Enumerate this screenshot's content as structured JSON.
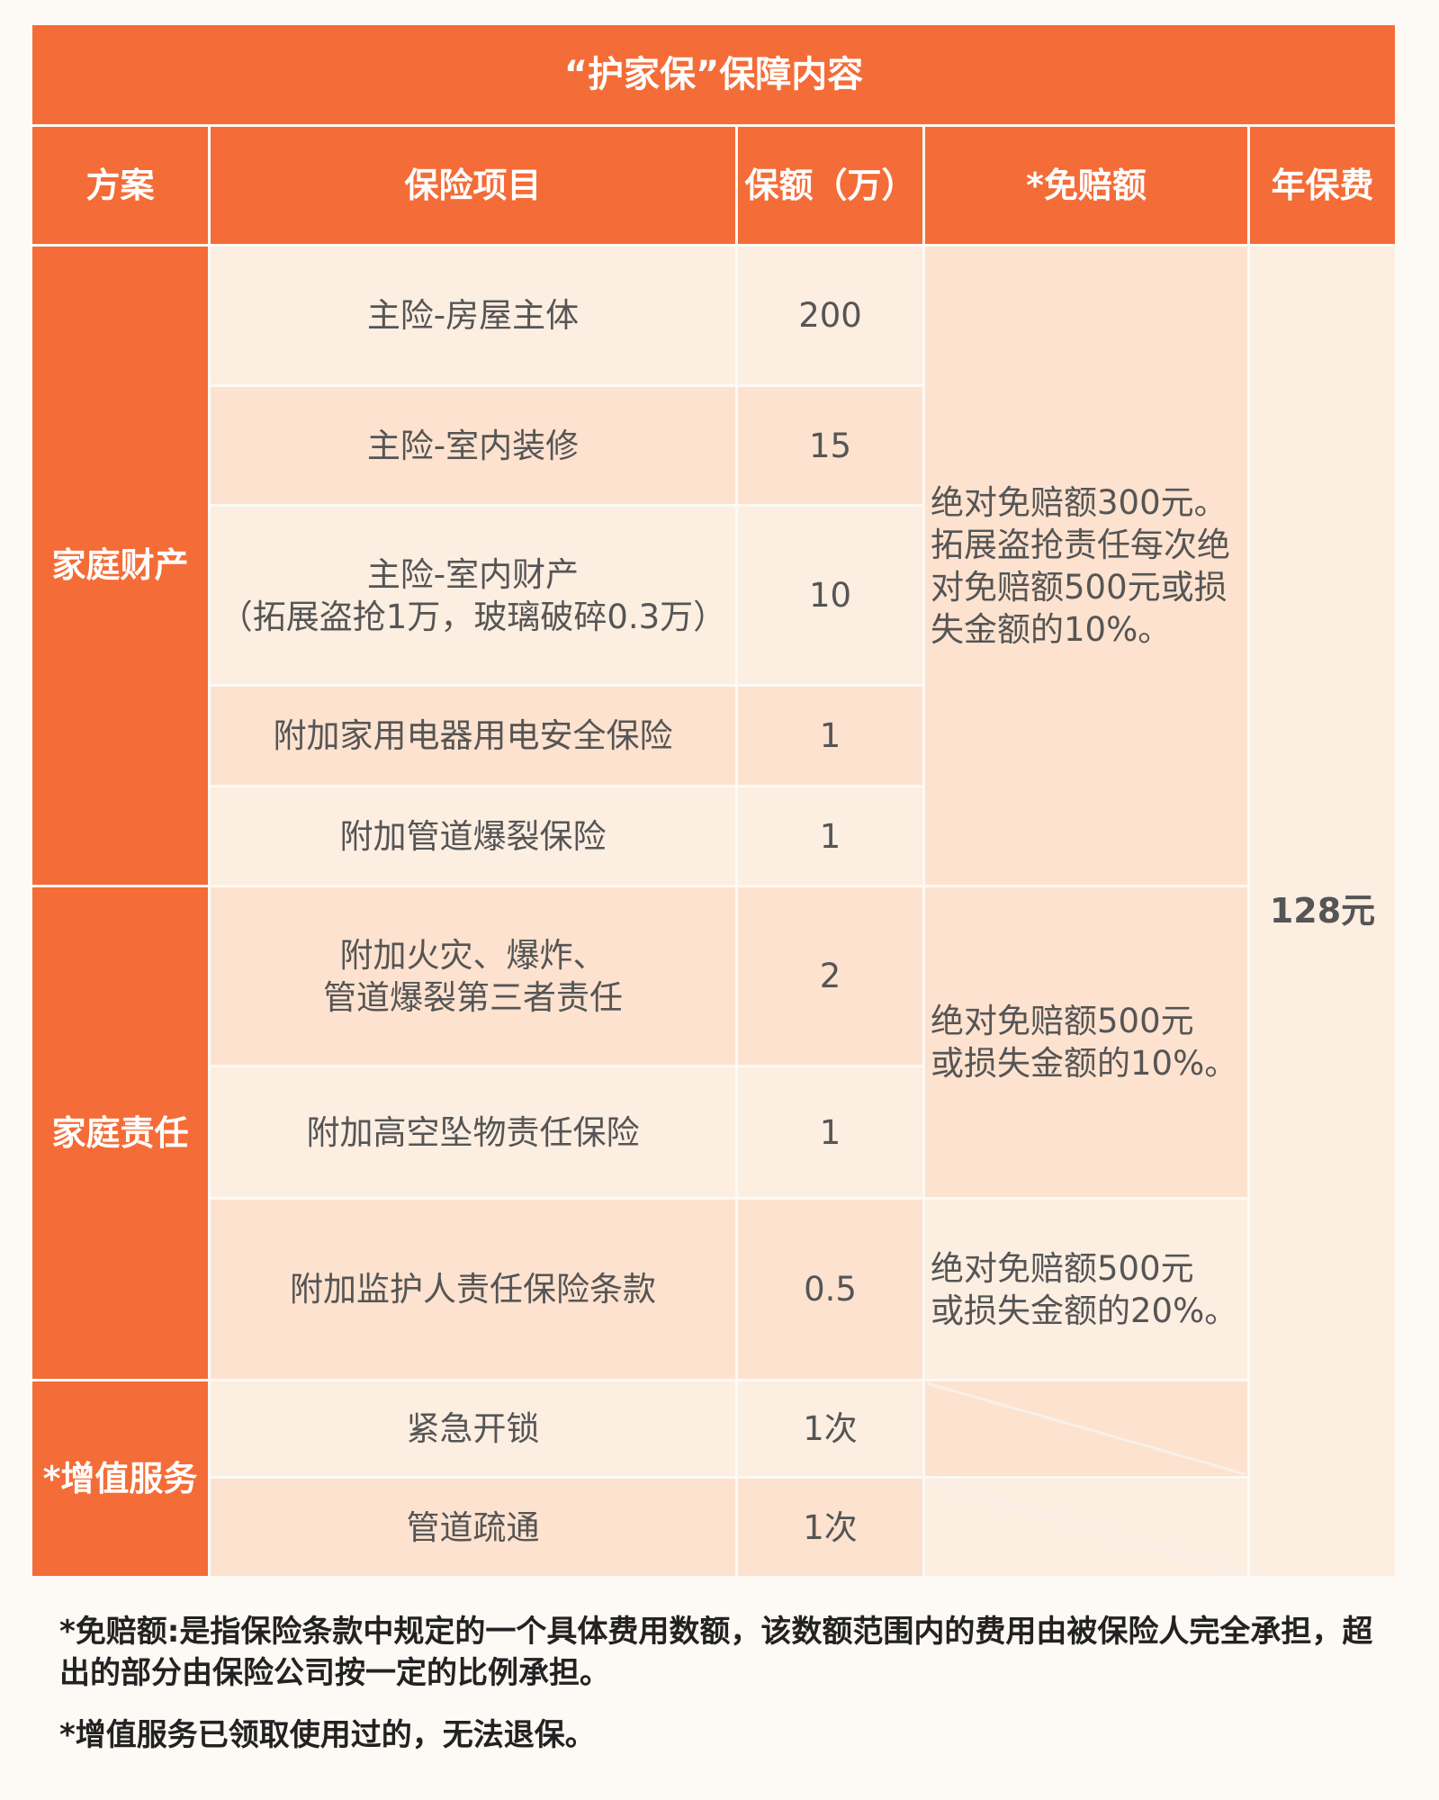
{
  "title": "“护家保”保障内容",
  "headers": {
    "plan": "方案",
    "item": "保险项目",
    "amount": "保额（万）",
    "deductible": "*免赔额",
    "fee": "年保费"
  },
  "plans": {
    "property": "家庭财产",
    "liability": "家庭责任",
    "service": "*增值服务"
  },
  "rows": [
    {
      "item": "主险-房屋主体",
      "amount": "200"
    },
    {
      "item": "主险-室内装修",
      "amount": "15"
    },
    {
      "item": "主险-室内财产\n（拓展盗抢1万，玻璃破碎0.3万）",
      "amount": "10"
    },
    {
      "item": "附加家用电器用电安全保险",
      "amount": "1"
    },
    {
      "item": "附加管道爆裂保险",
      "amount": "1"
    },
    {
      "item": "附加火灾、爆炸、\n管道爆裂第三者责任",
      "amount": "2"
    },
    {
      "item": "附加高空坠物责任保险",
      "amount": "1"
    },
    {
      "item": "附加监护人责任保险条款",
      "amount": "0.5"
    },
    {
      "item": "紧急开锁",
      "amount": "1次"
    },
    {
      "item": "管道疏通",
      "amount": "1次"
    }
  ],
  "deductibles": {
    "property": "绝对免赔额300元。\n拓展盗抢责任每次绝\n对免赔额500元或损\n失金额的10%。",
    "liability": "绝对免赔额500元\n或损失金额的10%。",
    "guardian": "绝对免赔额500元\n或损失金额的20%。"
  },
  "annual_fee": "128元",
  "notes": [
    "*免赔额:是指保险条款中规定的一个具体费用数额，该数额范围内的费用由被保险人完全承担，超出的部分由保险公司按一定的比例承担。",
    "*增值服务已领取使用过的，无法退保。"
  ],
  "colors": {
    "accent": "#f46c37",
    "row_light": "#fdeee2",
    "row_dark": "#fde2cf",
    "background": "#fdf9f4"
  }
}
